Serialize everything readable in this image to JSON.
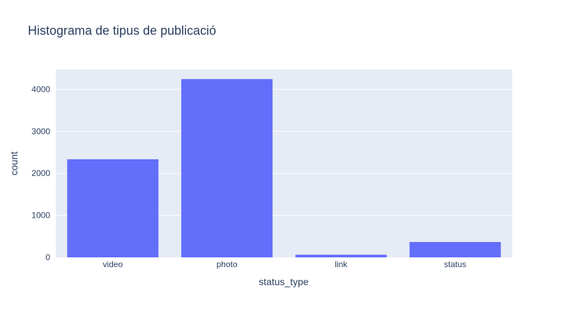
{
  "chart_data": {
    "type": "bar",
    "title": "Histograma de tipus de publicació",
    "xlabel": "status_type",
    "ylabel": "count",
    "categories": [
      "video",
      "photo",
      "link",
      "status"
    ],
    "values": [
      2334,
      4244,
      63,
      365
    ],
    "ylim": [
      0,
      4470
    ],
    "yticks": [
      0,
      1000,
      2000,
      3000,
      4000
    ],
    "grid": true,
    "colors": {
      "bar": "#636efa",
      "plot_bg": "#e5ecf6",
      "grid": "#ffffff",
      "text": "#2a3f5f"
    }
  }
}
